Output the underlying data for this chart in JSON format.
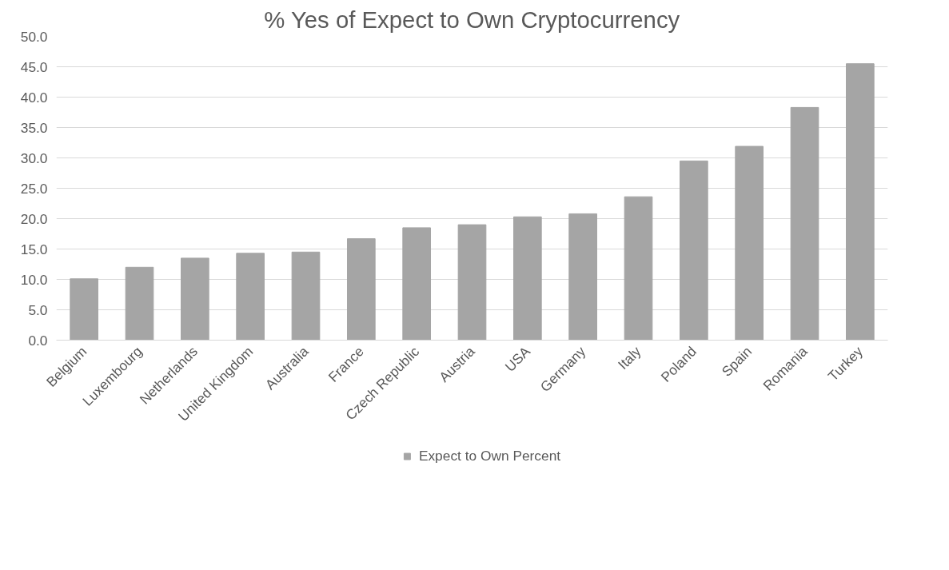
{
  "chart_data": {
    "type": "bar",
    "title": "% Yes of Expect to Own Cryptocurrency",
    "categories": [
      "Belgium",
      "Luxembourg",
      "Netherlands",
      "United Kingdom",
      "Australia",
      "France",
      "Czech Republic",
      "Austria",
      "USA",
      "Germany",
      "Italy",
      "Poland",
      "Spain",
      "Romania",
      "Turkey"
    ],
    "series": [
      {
        "name": "Expect to Own Percent",
        "color": "#a5a5a5",
        "values": [
          10.1,
          12.0,
          13.5,
          14.3,
          14.5,
          16.7,
          18.5,
          19.0,
          20.3,
          20.8,
          23.6,
          29.5,
          31.9,
          38.3,
          45.5
        ]
      }
    ],
    "ylim": [
      0,
      50
    ],
    "yticks": [
      {
        "value": 0,
        "label": "0.0"
      },
      {
        "value": 5,
        "label": "5.0"
      },
      {
        "value": 10,
        "label": "10.0"
      },
      {
        "value": 15,
        "label": "15.0"
      },
      {
        "value": 20,
        "label": "20.0"
      },
      {
        "value": 25,
        "label": "25.0"
      },
      {
        "value": 30,
        "label": "30.0"
      },
      {
        "value": 35,
        "label": "35.0"
      },
      {
        "value": 40,
        "label": "40.0"
      },
      {
        "value": 45,
        "label": "45.0"
      },
      {
        "value": 50,
        "label": "50.0"
      }
    ],
    "grid": "y",
    "legend": "bottom"
  }
}
